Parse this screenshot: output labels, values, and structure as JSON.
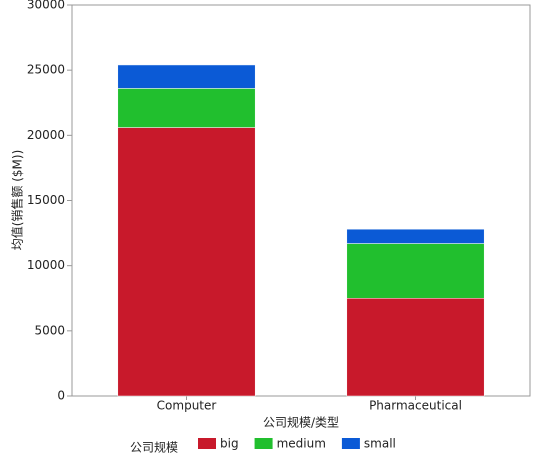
{
  "chart_data": {
    "type": "stacked-bar",
    "x_label": "公司规模/类型",
    "y_label": "均值(销售额 ($M))",
    "categories": [
      "Computer",
      "Pharmaceutical"
    ],
    "series": [
      {
        "name": "big",
        "color": "#c8192b",
        "values": [
          20600,
          7500
        ]
      },
      {
        "name": "medium",
        "color": "#21bf2e",
        "values": [
          3000,
          4200
        ]
      },
      {
        "name": "small",
        "color": "#0b5ad6",
        "values": [
          1800,
          1100
        ]
      }
    ],
    "legend_title": "公司规模",
    "ylim": [
      0,
      30000
    ],
    "yticks": [
      0,
      5000,
      10000,
      15000,
      20000,
      25000,
      30000
    ],
    "grid": false
  }
}
